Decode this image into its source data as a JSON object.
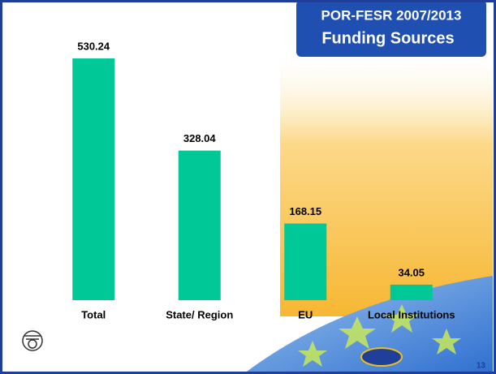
{
  "chart_data": {
    "type": "bar",
    "title": [
      "POR-FESR 2007/2013",
      "Funding Sources"
    ],
    "categories": [
      "Total",
      "State/ Region",
      "EU",
      "Local Institutions"
    ],
    "values": [
      530.24,
      328.04,
      168.15,
      34.05
    ],
    "color": "#00c896",
    "page_number": "13"
  }
}
